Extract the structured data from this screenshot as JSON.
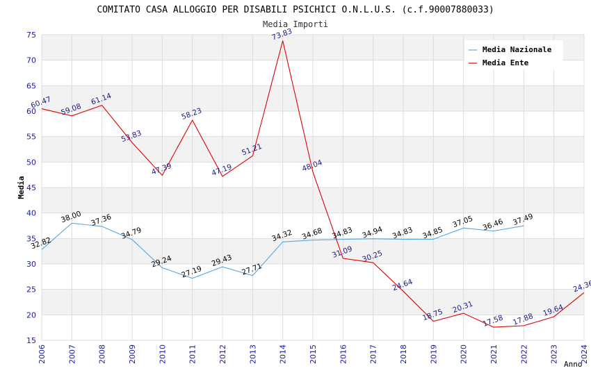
{
  "chart_data": {
    "type": "line",
    "title": "COMITATO CASA ALLOGGIO PER DISABILI PSICHICI O.N.L.U.S. (c.f.90007880033)",
    "subtitle": "Media Importi",
    "xlabel": "Anno",
    "ylabel": "Media",
    "ylim": [
      15,
      75
    ],
    "yticks": [
      "15",
      "20",
      "25",
      "30",
      "35",
      "40",
      "45",
      "50",
      "55",
      "60",
      "65",
      "70",
      "75"
    ],
    "x": [
      "2006",
      "2007",
      "2008",
      "2009",
      "2010",
      "2011",
      "2012",
      "2013",
      "2014",
      "2015",
      "2016",
      "2017",
      "2018",
      "2019",
      "2020",
      "2021",
      "2022",
      "2023",
      "2024"
    ],
    "grid": true,
    "legend_position": "top-right",
    "series": [
      {
        "name": "Media Nazionale",
        "color": "#5aa6e0",
        "label_color": "#000000",
        "values": [
          32.82,
          38.0,
          37.36,
          34.79,
          29.24,
          27.19,
          29.43,
          27.71,
          34.32,
          34.68,
          34.83,
          34.94,
          34.83,
          34.85,
          37.05,
          36.46,
          37.49,
          null,
          null
        ],
        "labels": [
          "32.82",
          "38.00",
          "37.36",
          "34.79",
          "29.24",
          "27.19",
          "29.43",
          "27.71",
          "34.32",
          "34.68",
          "34.83",
          "34.94",
          "34.83",
          "34.85",
          "37.05",
          "36.46",
          "37.49",
          "",
          ""
        ]
      },
      {
        "name": "Media Ente",
        "color": "#e00000",
        "label_color": "#1a1a80",
        "values": [
          60.47,
          59.08,
          61.14,
          53.83,
          47.39,
          58.23,
          47.19,
          51.21,
          73.83,
          48.04,
          31.09,
          30.25,
          24.64,
          18.75,
          20.31,
          17.58,
          17.88,
          19.64,
          24.36
        ],
        "labels": [
          "60.47",
          "59.08",
          "61.14",
          "53.83",
          "47.39",
          "58.23",
          "47.19",
          "51.21",
          "73.83",
          "48.04",
          "31.09",
          "30.25",
          "24.64",
          "18.75",
          "20.31",
          "17.58",
          "17.88",
          "19.64",
          "24.36"
        ]
      }
    ]
  }
}
